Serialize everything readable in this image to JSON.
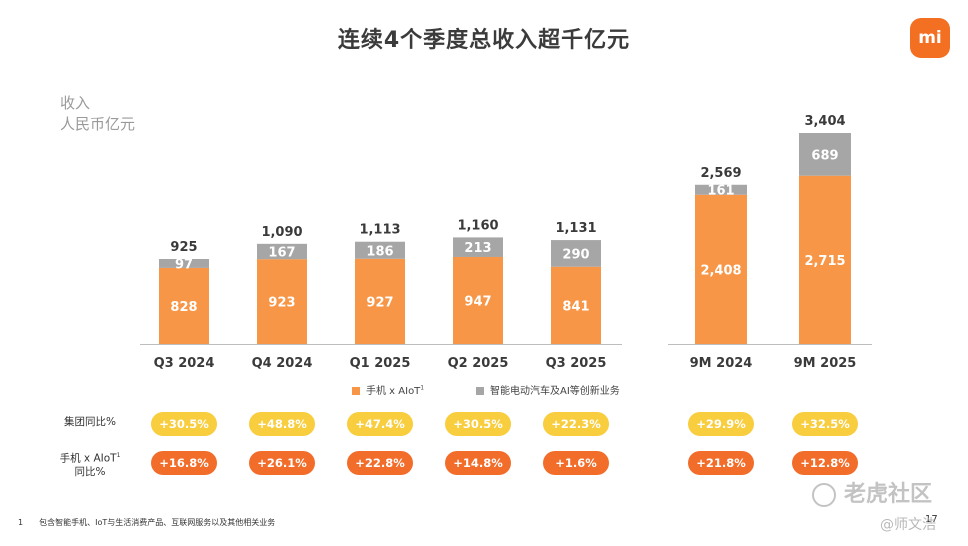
{
  "title": "连续4个季度总收入超千亿元",
  "logo_text": "mi",
  "unit": {
    "line1": "收入",
    "line2": "人民币亿元"
  },
  "chart_data": {
    "type": "bar",
    "stacked": true,
    "categories": [
      "Q3 2024",
      "Q4 2024",
      "Q1 2025",
      "Q2 2025",
      "Q3 2025",
      "9M 2024",
      "9M 2025"
    ],
    "series": [
      {
        "name": "手机 x AIoT",
        "values": [
          828,
          923,
          927,
          947,
          841,
          2408,
          2715
        ],
        "color": "#f79646"
      },
      {
        "name": "智能电动汽车及AI等创新业务",
        "values": [
          97,
          167,
          186,
          213,
          290,
          161,
          689
        ],
        "color": "#a6a6a6"
      }
    ],
    "value_labels": {
      "bottom": [
        "828",
        "923",
        "927",
        "947",
        "841",
        "2,408",
        "2,715"
      ],
      "top": [
        "97",
        "167",
        "186",
        "213",
        "290",
        "161",
        "689"
      ]
    },
    "totals": [
      925,
      1090,
      1113,
      1160,
      1131,
      2569,
      3404
    ],
    "total_labels": [
      "925",
      "1,090",
      "1,113",
      "1,160",
      "1,131",
      "2,569",
      "3,404"
    ],
    "ylabel": "收入 人民币亿元"
  },
  "legend": {
    "item1": "手机 x AIoT",
    "item1_sup": "1",
    "item2": "智能电动汽车及AI等创新业务"
  },
  "rows": {
    "group_label": "集团同比%",
    "group_values": [
      "+30.5%",
      "+48.8%",
      "+47.4%",
      "+30.5%",
      "+22.3%",
      "+29.9%",
      "+32.5%"
    ],
    "phone_label_line1": "手机 x AIoT",
    "phone_label_sup": "1",
    "phone_label_line2": "同比%",
    "phone_values": [
      "+16.8%",
      "+26.1%",
      "+22.8%",
      "+14.8%",
      "+1.6%",
      "+21.8%",
      "+12.8%"
    ]
  },
  "colors": {
    "orange": "#f79646",
    "gray": "#a6a6a6",
    "yellow_pill": "#f8cd3e",
    "orange_pill": "#f26c2a",
    "brand": "#f36f21"
  },
  "footnote": {
    "num": "1",
    "text": "包含智能手机、IoT与生活消费产品、互联网服务以及其他相关业务"
  },
  "page_number": "17",
  "watermark": {
    "main": "老虎社区",
    "user": "@师文浩"
  }
}
